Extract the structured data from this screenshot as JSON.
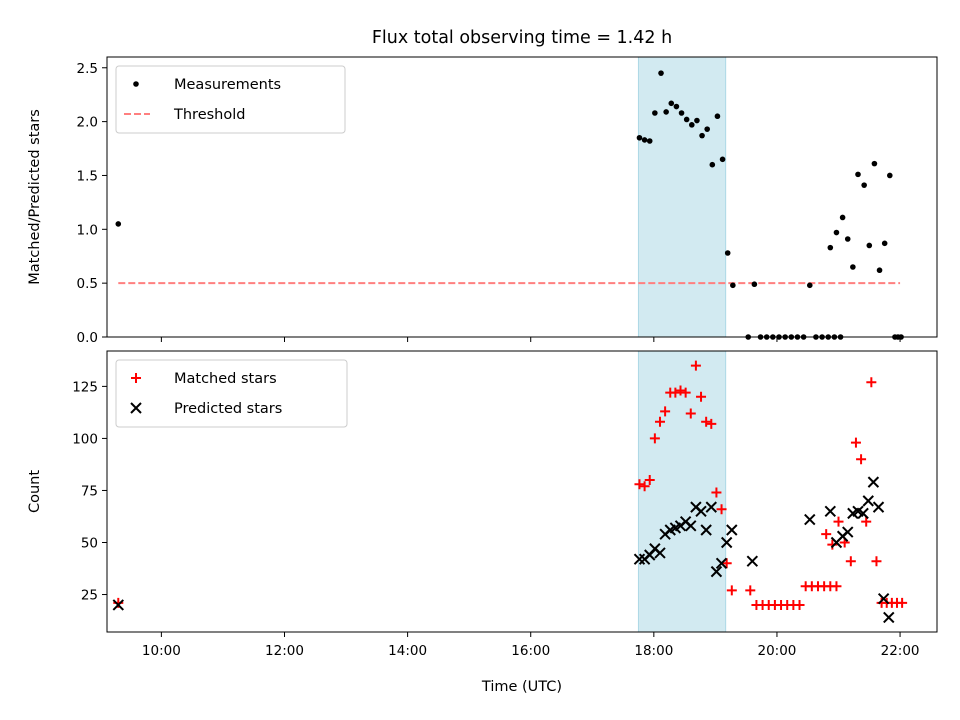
{
  "title": "Flux total observing time = 1.42 h",
  "xlabel": "Time (UTC)",
  "colors": {
    "measurement": "#000000",
    "threshold": "#ff7f7f",
    "matched": "#ff0000",
    "predicted": "#000000",
    "shade": "#add8e6"
  },
  "chart_data": [
    {
      "type": "scatter",
      "ylabel": "Matched/Predicted stars",
      "xlim": [
        "09:07",
        "22:36"
      ],
      "ylim": [
        0,
        2.6
      ],
      "xticks": [
        "10:00",
        "12:00",
        "14:00",
        "16:00",
        "18:00",
        "20:00",
        "22:00"
      ],
      "yticks": [
        0.0,
        0.5,
        1.0,
        1.5,
        2.0,
        2.5
      ],
      "ytick_labels": [
        "0.0",
        "0.5",
        "1.0",
        "1.5",
        "2.0",
        "2.5"
      ],
      "legend": {
        "position": "upper left"
      },
      "shaded_span": [
        "17:45",
        "19:10"
      ],
      "threshold": {
        "name": "Threshold",
        "y": 0.5,
        "x_range": [
          "09:18",
          "22:00"
        ]
      },
      "series": [
        {
          "name": "Measurements",
          "points": [
            [
              "09:18",
              1.05
            ],
            [
              "17:46",
              1.85
            ],
            [
              "17:51",
              1.83
            ],
            [
              "17:56",
              1.82
            ],
            [
              "18:01",
              2.08
            ],
            [
              "18:07",
              2.45
            ],
            [
              "18:12",
              2.09
            ],
            [
              "18:17",
              2.17
            ],
            [
              "18:22",
              2.14
            ],
            [
              "18:27",
              2.08
            ],
            [
              "18:32",
              2.02
            ],
            [
              "18:37",
              1.97
            ],
            [
              "18:42",
              2.01
            ],
            [
              "18:47",
              1.87
            ],
            [
              "18:52",
              1.93
            ],
            [
              "18:57",
              1.6
            ],
            [
              "19:02",
              2.05
            ],
            [
              "19:07",
              1.65
            ],
            [
              "19:12",
              0.78
            ],
            [
              "19:17",
              0.48
            ],
            [
              "19:32",
              0.0
            ],
            [
              "19:38",
              0.49
            ],
            [
              "19:44",
              0.0
            ],
            [
              "19:50",
              0.0
            ],
            [
              "19:56",
              0.0
            ],
            [
              "20:02",
              0.0
            ],
            [
              "20:08",
              0.0
            ],
            [
              "20:14",
              0.0
            ],
            [
              "20:20",
              0.0
            ],
            [
              "20:26",
              0.0
            ],
            [
              "20:32",
              0.48
            ],
            [
              "20:38",
              0.0
            ],
            [
              "20:44",
              0.0
            ],
            [
              "20:50",
              0.0
            ],
            [
              "20:56",
              0.0
            ],
            [
              "21:02",
              0.0
            ],
            [
              "20:52",
              0.83
            ],
            [
              "20:58",
              0.97
            ],
            [
              "21:04",
              1.11
            ],
            [
              "21:09",
              0.91
            ],
            [
              "21:14",
              0.65
            ],
            [
              "21:19",
              1.51
            ],
            [
              "21:25",
              1.41
            ],
            [
              "21:30",
              0.85
            ],
            [
              "21:35",
              1.61
            ],
            [
              "21:40",
              0.62
            ],
            [
              "21:45",
              0.87
            ],
            [
              "21:50",
              1.5
            ],
            [
              "21:55",
              0.0
            ],
            [
              "21:58",
              0.0
            ],
            [
              "22:01",
              0.0
            ]
          ]
        }
      ]
    },
    {
      "type": "scatter",
      "ylabel": "Count",
      "xlim": [
        "09:07",
        "22:36"
      ],
      "ylim": [
        7,
        142
      ],
      "xticks": [
        "10:00",
        "12:00",
        "14:00",
        "16:00",
        "18:00",
        "20:00",
        "22:00"
      ],
      "yticks": [
        25,
        50,
        75,
        100,
        125
      ],
      "ytick_labels": [
        "25",
        "50",
        "75",
        "100",
        "125"
      ],
      "legend": {
        "position": "upper left"
      },
      "shaded_span": [
        "17:45",
        "19:10"
      ],
      "series": [
        {
          "name": "Matched stars",
          "marker": "+",
          "points": [
            [
              "09:18",
              21
            ],
            [
              "17:46",
              78
            ],
            [
              "17:51",
              77
            ],
            [
              "17:56",
              80
            ],
            [
              "18:01",
              100
            ],
            [
              "18:06",
              108
            ],
            [
              "18:11",
              113
            ],
            [
              "18:16",
              122
            ],
            [
              "18:21",
              122
            ],
            [
              "18:26",
              123
            ],
            [
              "18:31",
              122
            ],
            [
              "18:36",
              112
            ],
            [
              "18:41",
              135
            ],
            [
              "18:46",
              120
            ],
            [
              "18:51",
              108
            ],
            [
              "18:56",
              107
            ],
            [
              "19:01",
              74
            ],
            [
              "19:06",
              66
            ],
            [
              "19:11",
              40
            ],
            [
              "19:16",
              27
            ],
            [
              "19:34",
              27
            ],
            [
              "19:40",
              20
            ],
            [
              "19:46",
              20
            ],
            [
              "19:52",
              20
            ],
            [
              "19:58",
              20
            ],
            [
              "20:04",
              20
            ],
            [
              "20:10",
              20
            ],
            [
              "20:16",
              20
            ],
            [
              "20:22",
              20
            ],
            [
              "20:28",
              29
            ],
            [
              "20:34",
              29
            ],
            [
              "20:40",
              29
            ],
            [
              "20:46",
              29
            ],
            [
              "20:52",
              29
            ],
            [
              "20:58",
              29
            ],
            [
              "20:48",
              54
            ],
            [
              "20:54",
              49
            ],
            [
              "21:00",
              60
            ],
            [
              "21:06",
              50
            ],
            [
              "21:12",
              41
            ],
            [
              "21:17",
              98
            ],
            [
              "21:22",
              90
            ],
            [
              "21:27",
              60
            ],
            [
              "21:32",
              127
            ],
            [
              "21:37",
              41
            ],
            [
              "21:42",
              21
            ],
            [
              "21:47",
              21
            ],
            [
              "21:52",
              21
            ],
            [
              "21:57",
              21
            ],
            [
              "22:02",
              21
            ]
          ]
        },
        {
          "name": "Predicted stars",
          "marker": "x",
          "points": [
            [
              "09:18",
              20
            ],
            [
              "17:46",
              42
            ],
            [
              "17:51",
              42
            ],
            [
              "17:56",
              44
            ],
            [
              "18:01",
              47
            ],
            [
              "18:06",
              45
            ],
            [
              "18:11",
              54
            ],
            [
              "18:16",
              56
            ],
            [
              "18:21",
              57
            ],
            [
              "18:26",
              58
            ],
            [
              "18:31",
              60
            ],
            [
              "18:36",
              58
            ],
            [
              "18:41",
              67
            ],
            [
              "18:46",
              65
            ],
            [
              "18:51",
              56
            ],
            [
              "18:56",
              67
            ],
            [
              "19:01",
              36
            ],
            [
              "19:06",
              40
            ],
            [
              "19:11",
              50
            ],
            [
              "19:16",
              56
            ],
            [
              "19:36",
              41
            ],
            [
              "20:32",
              61
            ],
            [
              "20:52",
              65
            ],
            [
              "20:58",
              50
            ],
            [
              "21:04",
              53
            ],
            [
              "21:09",
              55
            ],
            [
              "21:14",
              64
            ],
            [
              "21:19",
              65
            ],
            [
              "21:24",
              64
            ],
            [
              "21:29",
              70
            ],
            [
              "21:34",
              79
            ],
            [
              "21:39",
              67
            ],
            [
              "21:44",
              23
            ],
            [
              "21:49",
              14
            ]
          ]
        }
      ]
    }
  ]
}
